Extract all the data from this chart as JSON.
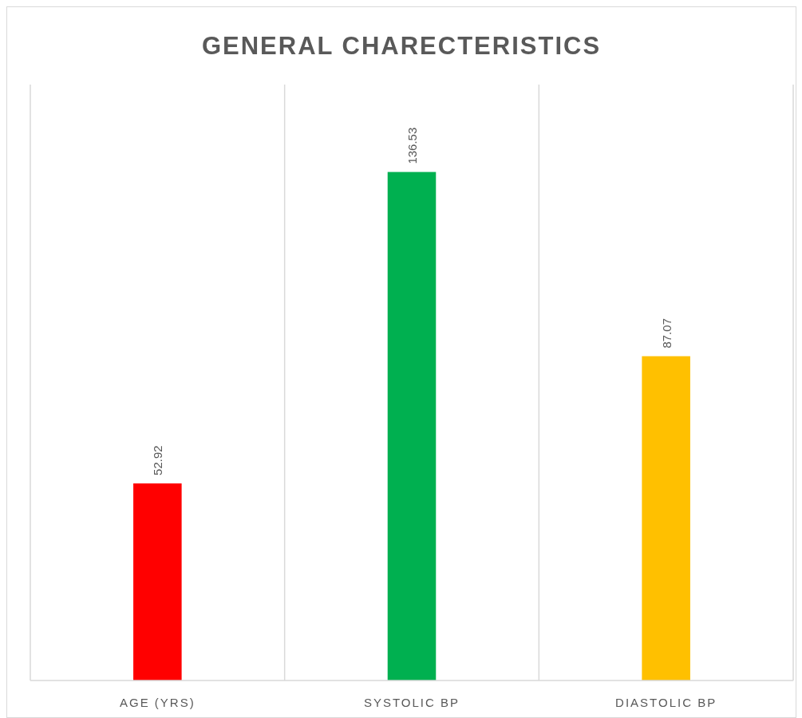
{
  "chart_data": {
    "type": "bar",
    "title": "GENERAL CHARECTERISTICS",
    "categories": [
      "AGE (YRS)",
      "SYSTOLIC BP",
      "DIASTOLIC BP"
    ],
    "values": [
      52.92,
      136.53,
      87.07
    ],
    "colors": [
      "#ff0000",
      "#00b050",
      "#ffc000"
    ],
    "ylim": [
      0,
      160
    ],
    "data_labels": true,
    "grid": "x"
  }
}
